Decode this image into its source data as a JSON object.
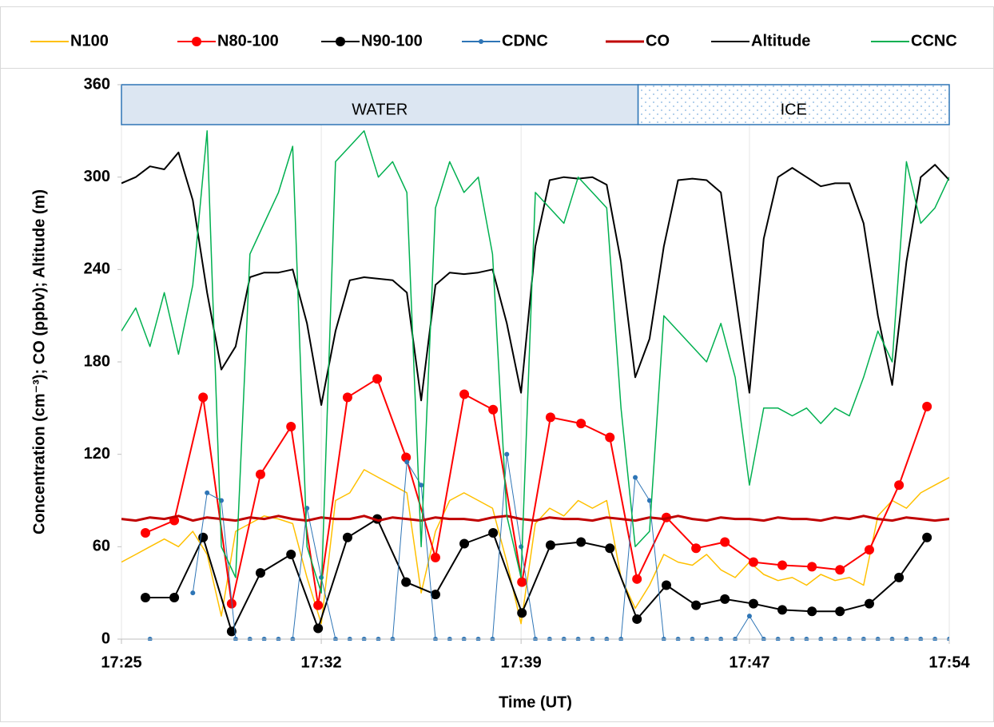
{
  "chart_data": {
    "type": "line",
    "x_label": "Time (UT)",
    "y_label": "Concentration (cm⁻³); CO (ppbv);  Altitude (m)",
    "xlim": [
      1045,
      1074
    ],
    "xticks": [
      {
        "value": 1045,
        "label": "17:25"
      },
      {
        "value": 1052,
        "label": "17:32"
      },
      {
        "value": 1059,
        "label": "17:39"
      },
      {
        "value": 1067,
        "label": "17:47"
      },
      {
        "value": 1074,
        "label": "17:54"
      }
    ],
    "ylim": [
      0,
      360
    ],
    "yticks": [
      0,
      60,
      120,
      180,
      240,
      300,
      360
    ],
    "grid": "x",
    "legend": "top",
    "phases": [
      {
        "label": "WATER",
        "start": 1045,
        "end": 1063.1,
        "style": "solid",
        "color": "#dce6f2"
      },
      {
        "label": "ICE",
        "start": 1063.1,
        "end": 1074,
        "style": "dotted",
        "color": "#9dc3e6"
      }
    ],
    "x": [
      1045,
      1045.5,
      1046,
      1046.5,
      1047,
      1047.5,
      1048,
      1048.5,
      1049,
      1049.5,
      1050,
      1050.5,
      1051,
      1051.5,
      1052,
      1052.5,
      1053,
      1053.5,
      1054,
      1054.5,
      1055,
      1055.5,
      1056,
      1056.5,
      1057,
      1057.5,
      1058,
      1058.5,
      1059,
      1059.5,
      1060,
      1060.5,
      1061,
      1061.5,
      1062,
      1062.5,
      1063,
      1063.5,
      1064,
      1064.5,
      1065,
      1065.5,
      1066,
      1066.5,
      1067,
      1067.5,
      1068,
      1068.5,
      1069,
      1069.5,
      1070,
      1070.5,
      1071,
      1071.5,
      1072,
      1072.5,
      1073,
      1073.5,
      1074
    ],
    "series": [
      {
        "name": "N100",
        "color": "#ffc000",
        "line_width": 1.5,
        "markers": false,
        "values": [
          50,
          55,
          60,
          65,
          60,
          70,
          55,
          15,
          70,
          75,
          80,
          78,
          75,
          40,
          10,
          90,
          95,
          110,
          105,
          100,
          95,
          30,
          70,
          90,
          95,
          90,
          85,
          50,
          10,
          75,
          85,
          80,
          90,
          85,
          90,
          40,
          20,
          35,
          55,
          50,
          48,
          55,
          45,
          40,
          50,
          42,
          38,
          40,
          35,
          42,
          38,
          40,
          35,
          80,
          90,
          85,
          95,
          100,
          105
        ]
      },
      {
        "name": "N80-100",
        "color": "#ff0000",
        "line_width": 2,
        "markers": true,
        "marker_size": 6,
        "x": [
          1045.84,
          1046.85,
          1047.86,
          1048.86,
          1049.87,
          1050.94,
          1051.89,
          1052.92,
          1053.96,
          1054.97,
          1056,
          1057.01,
          1058.02,
          1059.03,
          1060.03,
          1061.1,
          1062.11,
          1063.06,
          1064.09,
          1065.13,
          1066.14,
          1067.14,
          1068.15,
          1069.19,
          1070.17,
          1071.2,
          1072.24,
          1073.22
        ],
        "values": [
          69,
          77,
          157,
          23,
          107,
          138,
          22,
          157,
          169,
          118,
          53,
          159,
          149,
          37,
          144,
          140,
          131,
          39,
          79,
          59,
          63,
          50,
          48,
          47,
          45,
          58,
          100,
          151
        ]
      },
      {
        "name": "N90-100",
        "color": "#000000",
        "line_width": 2,
        "markers": true,
        "marker_size": 6,
        "x": [
          1045.84,
          1046.85,
          1047.86,
          1048.86,
          1049.87,
          1050.94,
          1051.89,
          1052.92,
          1053.96,
          1054.97,
          1056,
          1057.01,
          1058.02,
          1059.03,
          1060.03,
          1061.1,
          1062.11,
          1063.06,
          1064.09,
          1065.13,
          1066.14,
          1067.14,
          1068.15,
          1069.19,
          1070.17,
          1071.2,
          1072.24,
          1073.22
        ],
        "values": [
          27,
          27,
          66,
          5,
          43,
          55,
          7,
          66,
          78,
          37,
          29,
          62,
          69,
          17,
          61,
          63,
          59,
          13,
          35,
          22,
          26,
          23,
          19,
          18,
          18,
          23,
          40,
          66
        ]
      },
      {
        "name": "CDNC",
        "color": "#2e75b6",
        "line_width": 1,
        "markers": true,
        "marker_size": 3,
        "values": [
          null,
          null,
          0,
          null,
          null,
          30,
          95,
          90,
          0,
          0,
          0,
          0,
          0,
          85,
          40,
          0,
          0,
          0,
          0,
          0,
          115,
          100,
          0,
          0,
          0,
          0,
          0,
          120,
          60,
          0,
          0,
          0,
          0,
          0,
          0,
          0,
          105,
          90,
          0,
          0,
          0,
          0,
          0,
          0,
          15,
          0,
          0,
          0,
          0,
          0,
          0,
          0,
          0,
          0,
          0,
          0,
          0,
          0,
          0
        ]
      },
      {
        "name": "CO",
        "color": "#c00000",
        "line_width": 3,
        "markers": false,
        "values": [
          78,
          77,
          79,
          78,
          80,
          77,
          79,
          78,
          77,
          79,
          78,
          80,
          78,
          77,
          79,
          78,
          78,
          80,
          77,
          79,
          78,
          77,
          79,
          78,
          78,
          77,
          79,
          80,
          78,
          77,
          79,
          78,
          78,
          77,
          79,
          78,
          77,
          79,
          78,
          80,
          78,
          77,
          79,
          78,
          78,
          77,
          79,
          78,
          78,
          77,
          79,
          78,
          80,
          78,
          77,
          79,
          78,
          77,
          78
        ]
      },
      {
        "name": "Altitude",
        "color": "#000000",
        "line_width": 2,
        "markers": false,
        "values": [
          296,
          300,
          307,
          305,
          316,
          285,
          225,
          175,
          190,
          235,
          238,
          238,
          240,
          205,
          152,
          200,
          233,
          235,
          234,
          233,
          225,
          155,
          230,
          238,
          237,
          238,
          240,
          205,
          160,
          255,
          298,
          300,
          299,
          300,
          295,
          245,
          170,
          195,
          255,
          298,
          299,
          298,
          290,
          225,
          160,
          260,
          300,
          306,
          300,
          294,
          296,
          296,
          270,
          210,
          165,
          245,
          300,
          308,
          298
        ]
      },
      {
        "name": "CCNC",
        "color": "#00b050",
        "line_width": 1.5,
        "markers": false,
        "values": [
          200,
          215,
          190,
          225,
          185,
          230,
          330,
          60,
          40,
          250,
          270,
          290,
          320,
          60,
          30,
          310,
          320,
          330,
          300,
          310,
          290,
          60,
          280,
          310,
          290,
          300,
          250,
          80,
          40,
          290,
          280,
          270,
          300,
          290,
          280,
          150,
          60,
          70,
          210,
          200,
          190,
          180,
          205,
          170,
          100,
          150,
          150,
          145,
          150,
          140,
          150,
          145,
          170,
          200,
          180,
          310,
          270,
          280,
          300
        ]
      }
    ]
  }
}
